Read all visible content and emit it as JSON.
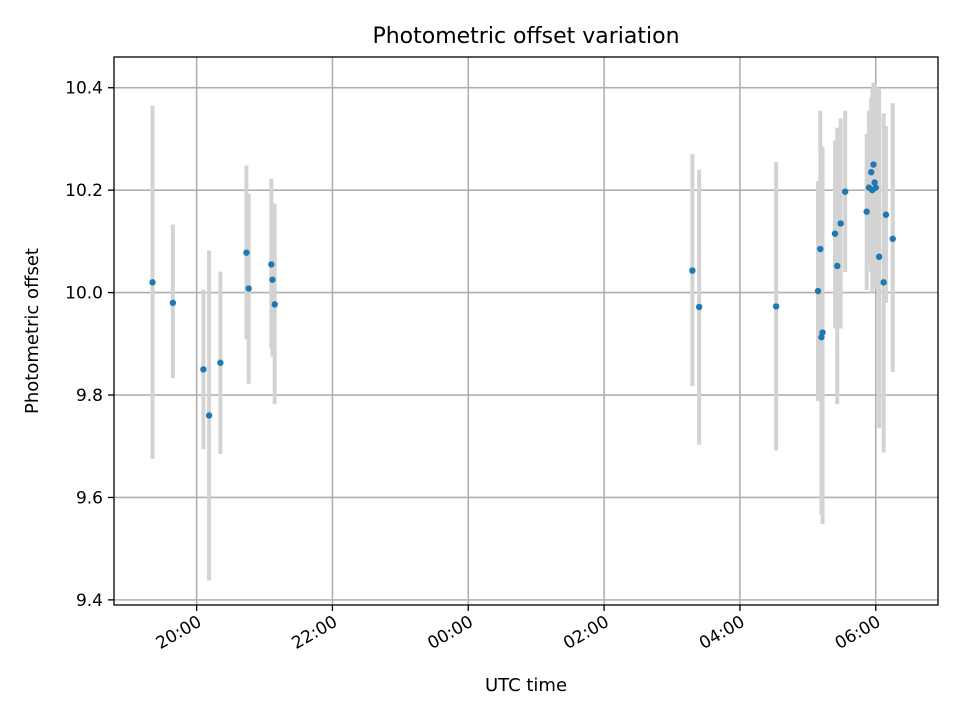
{
  "chart_data": {
    "type": "scatter",
    "title": "Photometric offset variation",
    "xlabel": "UTC time",
    "ylabel": "Photometric offset",
    "x_axis": {
      "type": "time",
      "start": "2000-01-01 18:47",
      "end": "2000-01-02 06:55",
      "ticks": [
        {
          "t": "2000-01-01 20:00",
          "label": "20:00"
        },
        {
          "t": "2000-01-01 22:00",
          "label": "22:00"
        },
        {
          "t": "2000-01-02 00:00",
          "label": "00:00"
        },
        {
          "t": "2000-01-02 02:00",
          "label": "02:00"
        },
        {
          "t": "2000-01-02 04:00",
          "label": "04:00"
        },
        {
          "t": "2000-01-02 06:00",
          "label": "06:00"
        }
      ]
    },
    "ylim": [
      9.39,
      10.46
    ],
    "yticks": [
      9.4,
      9.6,
      9.8,
      10.0,
      10.2,
      10.4
    ],
    "ytick_labels": [
      "9.4",
      "9.6",
      "9.8",
      "10.0",
      "10.2",
      "10.4"
    ],
    "grid": true,
    "colors": {
      "point": "#1f77b4",
      "errorbar": "#d3d3d3",
      "grid": "#b0b0b0"
    },
    "points": [
      {
        "t": "2000-01-01 19:21",
        "y": 10.02,
        "lo": 9.675,
        "hi": 10.365
      },
      {
        "t": "2000-01-01 19:39",
        "y": 9.98,
        "lo": 9.833,
        "hi": 10.133
      },
      {
        "t": "2000-01-01 20:06",
        "y": 9.85,
        "lo": 9.694,
        "hi": 10.006
      },
      {
        "t": "2000-01-01 20:11",
        "y": 9.76,
        "lo": 9.438,
        "hi": 10.082
      },
      {
        "t": "2000-01-01 20:21",
        "y": 9.863,
        "lo": 9.685,
        "hi": 10.041
      },
      {
        "t": "2000-01-01 20:44",
        "y": 10.078,
        "lo": 9.909,
        "hi": 10.248
      },
      {
        "t": "2000-01-01 20:46",
        "y": 10.008,
        "lo": 9.822,
        "hi": 10.193
      },
      {
        "t": "2000-01-01 21:06",
        "y": 10.055,
        "lo": 9.89,
        "hi": 10.222
      },
      {
        "t": "2000-01-01 21:07",
        "y": 10.025,
        "lo": 9.875,
        "hi": 10.175
      },
      {
        "t": "2000-01-01 21:09",
        "y": 9.977,
        "lo": 9.782,
        "hi": 10.173
      },
      {
        "t": "2000-01-02 03:18",
        "y": 10.043,
        "lo": 9.817,
        "hi": 10.27
      },
      {
        "t": "2000-01-02 03:24",
        "y": 9.972,
        "lo": 9.703,
        "hi": 10.24
      },
      {
        "t": "2000-01-02 04:32",
        "y": 9.973,
        "lo": 9.692,
        "hi": 10.255
      },
      {
        "t": "2000-01-02 05:09",
        "y": 10.003,
        "lo": 9.788,
        "hi": 10.218
      },
      {
        "t": "2000-01-02 05:11",
        "y": 10.085,
        "lo": 9.815,
        "hi": 10.355
      },
      {
        "t": "2000-01-02 05:12",
        "y": 9.913,
        "lo": 9.567,
        "hi": 10.26
      },
      {
        "t": "2000-01-02 05:13",
        "y": 9.922,
        "lo": 9.548,
        "hi": 10.285
      },
      {
        "t": "2000-01-02 05:24",
        "y": 10.115,
        "lo": 9.93,
        "hi": 10.297
      },
      {
        "t": "2000-01-02 05:26",
        "y": 10.052,
        "lo": 9.782,
        "hi": 10.322
      },
      {
        "t": "2000-01-02 05:29",
        "y": 10.135,
        "lo": 9.93,
        "hi": 10.34
      },
      {
        "t": "2000-01-02 05:33",
        "y": 10.197,
        "lo": 10.04,
        "hi": 10.355
      },
      {
        "t": "2000-01-02 05:52",
        "y": 10.158,
        "lo": 10.005,
        "hi": 10.31
      },
      {
        "t": "2000-01-02 05:54",
        "y": 10.205,
        "lo": 10.055,
        "hi": 10.355
      },
      {
        "t": "2000-01-02 05:56",
        "y": 10.235,
        "lo": 10.04,
        "hi": 10.38
      },
      {
        "t": "2000-01-02 05:57",
        "y": 10.2,
        "lo": 10.0,
        "hi": 10.4
      },
      {
        "t": "2000-01-02 05:58",
        "y": 10.25,
        "lo": 10.09,
        "hi": 10.41
      },
      {
        "t": "2000-01-02 05:59",
        "y": 10.215,
        "lo": 10.03,
        "hi": 10.405
      },
      {
        "t": "2000-01-02 06:00",
        "y": 10.205,
        "lo": 10.01,
        "hi": 10.4
      },
      {
        "t": "2000-01-02 06:03",
        "y": 10.07,
        "lo": 9.735,
        "hi": 10.4
      },
      {
        "t": "2000-01-02 06:07",
        "y": 10.02,
        "lo": 9.688,
        "hi": 10.35
      },
      {
        "t": "2000-01-02 06:09",
        "y": 10.152,
        "lo": 9.98,
        "hi": 10.325
      },
      {
        "t": "2000-01-02 06:15",
        "y": 10.105,
        "lo": 9.845,
        "hi": 10.37
      }
    ]
  }
}
